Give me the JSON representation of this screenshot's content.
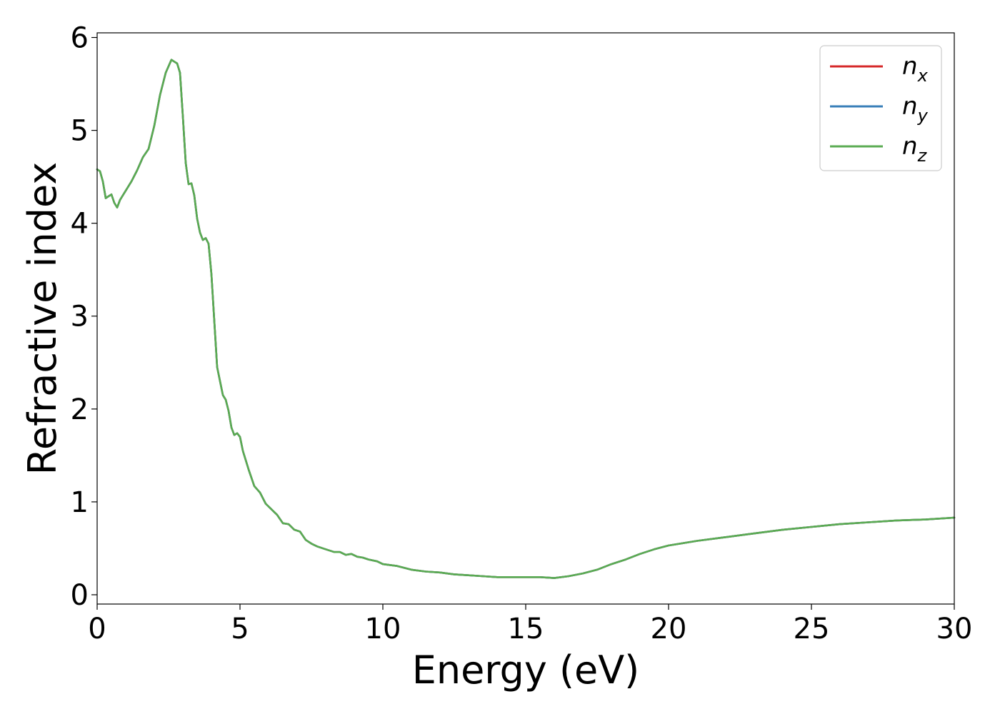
{
  "chart_data": {
    "type": "line",
    "xlabel": "Energy (eV)",
    "ylabel": "Refractive index",
    "xlim": [
      0,
      30
    ],
    "ylim": [
      -0.1,
      6.05
    ],
    "xticks": [
      0,
      5,
      10,
      15,
      20,
      25,
      30
    ],
    "yticks": [
      0,
      1,
      2,
      3,
      4,
      5,
      6
    ],
    "grid": false,
    "legend_position": "top-right",
    "x": [
      0.0,
      0.1,
      0.2,
      0.3,
      0.4,
      0.5,
      0.6,
      0.7,
      0.8,
      1.0,
      1.2,
      1.4,
      1.6,
      1.8,
      2.0,
      2.2,
      2.4,
      2.6,
      2.7,
      2.8,
      2.9,
      3.0,
      3.1,
      3.2,
      3.3,
      3.4,
      3.5,
      3.6,
      3.7,
      3.8,
      3.9,
      4.0,
      4.1,
      4.2,
      4.3,
      4.4,
      4.5,
      4.6,
      4.7,
      4.8,
      4.9,
      5.0,
      5.1,
      5.2,
      5.3,
      5.5,
      5.7,
      5.9,
      6.1,
      6.3,
      6.5,
      6.7,
      6.9,
      7.1,
      7.3,
      7.5,
      7.7,
      8.0,
      8.3,
      8.5,
      8.7,
      8.9,
      9.1,
      9.3,
      9.5,
      9.8,
      10.0,
      10.5,
      11.0,
      11.5,
      12.0,
      12.5,
      13.0,
      13.5,
      14.0,
      14.5,
      15.0,
      15.5,
      16.0,
      16.5,
      17.0,
      17.5,
      18.0,
      18.5,
      19.0,
      19.5,
      20.0,
      21.0,
      22.0,
      23.0,
      24.0,
      25.0,
      26.0,
      27.0,
      28.0,
      29.0,
      30.0
    ],
    "series": [
      {
        "name": "n_x",
        "label_base": "n",
        "label_sub": "x",
        "color": "#d62728",
        "values": [
          4.58,
          4.56,
          4.45,
          4.27,
          4.29,
          4.31,
          4.22,
          4.17,
          4.25,
          4.35,
          4.45,
          4.57,
          4.71,
          4.8,
          5.05,
          5.38,
          5.62,
          5.76,
          5.74,
          5.72,
          5.62,
          5.15,
          4.65,
          4.42,
          4.43,
          4.3,
          4.05,
          3.9,
          3.82,
          3.84,
          3.78,
          3.45,
          2.95,
          2.45,
          2.3,
          2.15,
          2.1,
          1.98,
          1.8,
          1.72,
          1.74,
          1.7,
          1.55,
          1.45,
          1.35,
          1.17,
          1.1,
          0.98,
          0.92,
          0.86,
          0.77,
          0.76,
          0.7,
          0.68,
          0.59,
          0.55,
          0.52,
          0.49,
          0.46,
          0.46,
          0.43,
          0.44,
          0.41,
          0.4,
          0.38,
          0.36,
          0.33,
          0.31,
          0.27,
          0.25,
          0.24,
          0.22,
          0.21,
          0.2,
          0.19,
          0.19,
          0.19,
          0.19,
          0.18,
          0.2,
          0.23,
          0.27,
          0.33,
          0.38,
          0.44,
          0.49,
          0.53,
          0.58,
          0.62,
          0.66,
          0.7,
          0.73,
          0.76,
          0.78,
          0.8,
          0.81,
          0.83
        ]
      },
      {
        "name": "n_y",
        "label_base": "n",
        "label_sub": "y",
        "color": "#377eb8",
        "values": [
          4.58,
          4.56,
          4.45,
          4.27,
          4.29,
          4.31,
          4.22,
          4.17,
          4.25,
          4.35,
          4.45,
          4.57,
          4.71,
          4.8,
          5.05,
          5.38,
          5.62,
          5.76,
          5.74,
          5.72,
          5.62,
          5.15,
          4.65,
          4.42,
          4.43,
          4.3,
          4.05,
          3.9,
          3.82,
          3.84,
          3.78,
          3.45,
          2.95,
          2.45,
          2.3,
          2.15,
          2.1,
          1.98,
          1.8,
          1.72,
          1.74,
          1.7,
          1.55,
          1.45,
          1.35,
          1.17,
          1.1,
          0.98,
          0.92,
          0.86,
          0.77,
          0.76,
          0.7,
          0.68,
          0.59,
          0.55,
          0.52,
          0.49,
          0.46,
          0.46,
          0.43,
          0.44,
          0.41,
          0.4,
          0.38,
          0.36,
          0.33,
          0.31,
          0.27,
          0.25,
          0.24,
          0.22,
          0.21,
          0.2,
          0.19,
          0.19,
          0.19,
          0.19,
          0.18,
          0.2,
          0.23,
          0.27,
          0.33,
          0.38,
          0.44,
          0.49,
          0.53,
          0.58,
          0.62,
          0.66,
          0.7,
          0.73,
          0.76,
          0.78,
          0.8,
          0.81,
          0.83
        ]
      },
      {
        "name": "n_z",
        "label_base": "n",
        "label_sub": "z",
        "color": "#5aab52",
        "values": [
          4.58,
          4.56,
          4.45,
          4.27,
          4.29,
          4.31,
          4.22,
          4.17,
          4.25,
          4.35,
          4.45,
          4.57,
          4.71,
          4.8,
          5.05,
          5.38,
          5.62,
          5.76,
          5.74,
          5.72,
          5.62,
          5.15,
          4.65,
          4.42,
          4.43,
          4.3,
          4.05,
          3.9,
          3.82,
          3.84,
          3.78,
          3.45,
          2.95,
          2.45,
          2.3,
          2.15,
          2.1,
          1.98,
          1.8,
          1.72,
          1.74,
          1.7,
          1.55,
          1.45,
          1.35,
          1.17,
          1.1,
          0.98,
          0.92,
          0.86,
          0.77,
          0.76,
          0.7,
          0.68,
          0.59,
          0.55,
          0.52,
          0.49,
          0.46,
          0.46,
          0.43,
          0.44,
          0.41,
          0.4,
          0.38,
          0.36,
          0.33,
          0.31,
          0.27,
          0.25,
          0.24,
          0.22,
          0.21,
          0.2,
          0.19,
          0.19,
          0.19,
          0.19,
          0.18,
          0.2,
          0.23,
          0.27,
          0.33,
          0.38,
          0.44,
          0.49,
          0.53,
          0.58,
          0.62,
          0.66,
          0.7,
          0.73,
          0.76,
          0.78,
          0.8,
          0.81,
          0.83
        ]
      }
    ]
  }
}
